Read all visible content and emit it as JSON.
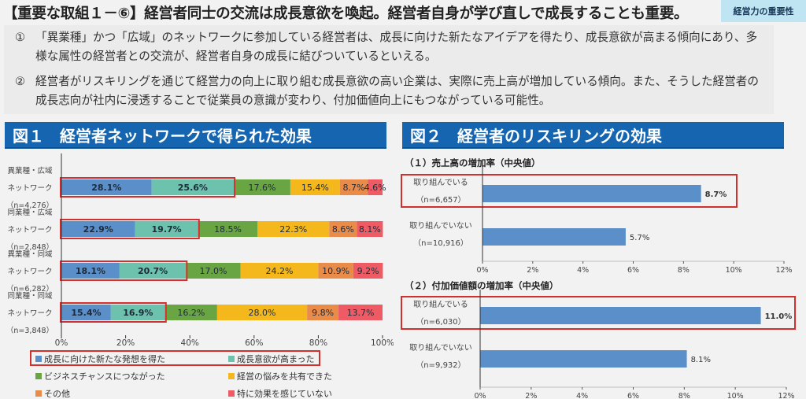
{
  "header": {
    "title": "【重要な取組１－⑥】経営者同士の交流は成長意欲を喚起。経営者自身が学び直しで成長することも重要。",
    "tag": "経営力の重要性"
  },
  "summary": [
    {
      "num": "①",
      "text": "「異業種」かつ「広域」のネットワークに参加している経営者は、成長に向けた新たなアイデアを得たり、成長意欲が高まる傾向にあり、多様な属性の経営者との交流が、経営者自身の成長に結びついているといえる。"
    },
    {
      "num": "②",
      "text": "経営者がリスキリングを通じて経営力の向上に取り組む成長意欲の高い企業は、実際に売上高が増加している傾向。また、そうした経営者の成長志向が社内に浸透することで従業員の意識が変わり、付加価値向上にもつながっている可能性。"
    }
  ],
  "figure1": {
    "title": "図１　経営者ネットワークで得られた効果"
  },
  "figure2": {
    "title": "図２　経営者のリスキリングの効果",
    "sub1": "（１）売上高の増加率（中央値）",
    "sub2": "（２）付加価値額の増加率（中央値）"
  },
  "chart_data": [
    {
      "type": "bar",
      "orientation": "horizontal",
      "stacked": true,
      "title": "図１　経営者ネットワークで得られた効果",
      "categories": [
        {
          "line1": "異業種・広域",
          "line2": "ネットワーク",
          "n": "（n=4,276）"
        },
        {
          "line1": "同業種・広域",
          "line2": "ネットワーク",
          "n": "（n=2,848）"
        },
        {
          "line1": "異業種・同域",
          "line2": "ネットワーク",
          "n": "（n=6,282）"
        },
        {
          "line1": "同業種・同域",
          "line2": "ネットワーク",
          "n": "（n=3,848）"
        }
      ],
      "series": [
        {
          "name": "成長に向けた新たな発想を得た",
          "color": "#5b8fc9",
          "bold": true,
          "values": [
            28.1,
            22.9,
            18.1,
            15.4
          ]
        },
        {
          "name": "成長意欲が高まった",
          "color": "#6cc2ac",
          "bold": true,
          "values": [
            25.6,
            19.7,
            20.7,
            16.9
          ]
        },
        {
          "name": "ビジネスチャンスにつながった",
          "color": "#6aa544",
          "bold": false,
          "values": [
            17.6,
            18.5,
            17.0,
            16.2
          ]
        },
        {
          "name": "経営の悩みを共有できた",
          "color": "#f4b81c",
          "bold": false,
          "values": [
            15.4,
            22.3,
            24.2,
            28.0
          ]
        },
        {
          "name": "その他",
          "color": "#e98c4a",
          "bold": false,
          "values": [
            8.7,
            8.6,
            10.9,
            9.8
          ]
        },
        {
          "name": "特に効果を感じていない",
          "color": "#ef5b64",
          "bold": false,
          "values": [
            4.6,
            8.1,
            9.2,
            13.7
          ]
        }
      ],
      "xlim": [
        0,
        100
      ],
      "xticks": [
        "0%",
        "20%",
        "40%",
        "60%",
        "80%",
        "100%"
      ],
      "highlight": "first two series and their legend entries outlined in red",
      "legend": "bottom"
    },
    {
      "type": "bar",
      "orientation": "horizontal",
      "title": "（１）売上高の増加率（中央値）",
      "categories": [
        {
          "line1": "取り組んでいる",
          "n": "（n=6,657）"
        },
        {
          "line1": "取り組んでいない",
          "n": "（n=10,916）"
        }
      ],
      "values": [
        8.7,
        5.7
      ],
      "labels": [
        "8.7%",
        "5.7%"
      ],
      "color": "#5b8fc9",
      "xlim": [
        0,
        12
      ],
      "xticks": [
        "0%",
        "2%",
        "4%",
        "6%",
        "8%",
        "10%",
        "12%"
      ],
      "highlight": "取り組んでいる"
    },
    {
      "type": "bar",
      "orientation": "horizontal",
      "title": "（２）付加価値額の増加率（中央値）",
      "categories": [
        {
          "line1": "取り組んでいる",
          "n": "（n=6,030）"
        },
        {
          "line1": "取り組んでいない",
          "n": "（n=9,932）"
        }
      ],
      "values": [
        11.0,
        8.1
      ],
      "labels": [
        "11.0%",
        "8.1%"
      ],
      "color": "#5b8fc9",
      "xlim": [
        0,
        12
      ],
      "xticks": [
        "0%",
        "2%",
        "4%",
        "6%",
        "8%",
        "10%",
        "12%"
      ],
      "highlight": "取り組んでいる"
    }
  ]
}
